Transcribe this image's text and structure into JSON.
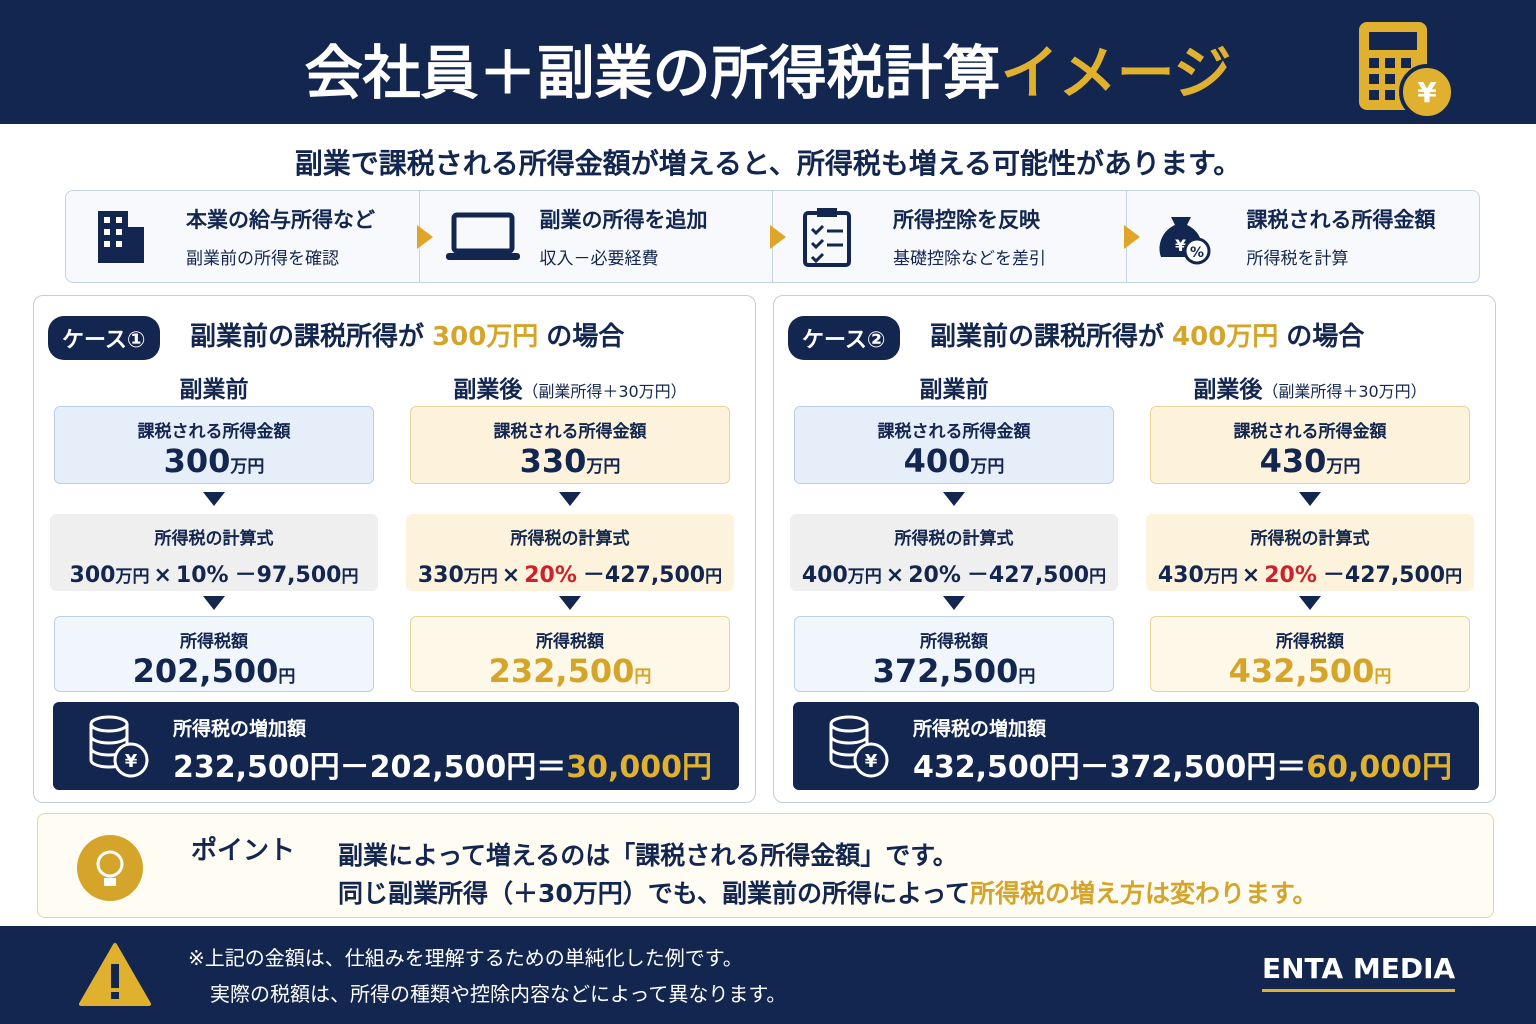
{
  "header": {
    "title_main": "会社員＋副業の所得税計算",
    "title_accent": "イメージ"
  },
  "intro": "副業で課税される所得金額が増えると、所得税も増える可能性があります。",
  "steps": [
    {
      "title": "本業の給与所得など",
      "sub": "副業前の所得を確認"
    },
    {
      "title": "副業の所得を追加",
      "sub": "収入－必要経費"
    },
    {
      "title": "所得控除を反映",
      "sub": "基礎控除などを差引"
    },
    {
      "title": "課税される所得金額",
      "sub": "所得税を計算"
    }
  ],
  "cases": [
    {
      "badge": "ケース①",
      "heading_prefix": "副業前の課税所得が",
      "heading_amount": "300万円",
      "heading_suffix": "の場合",
      "before_label": "副業前",
      "after_label": "副業後",
      "after_note": "（副業所得＋30万円）",
      "columns": [
        {
          "income_label": "課税される所得金額",
          "income_value": "300",
          "income_unit": "万円",
          "formula_label": "所得税の計算式",
          "formula_base": "300",
          "formula_base_unit": "万円",
          "formula_times": "×",
          "formula_rate": "10%",
          "formula_rest": "－97,500",
          "formula_rest_unit": "円",
          "tax_label": "所得税額",
          "tax_value": "202,500",
          "tax_unit": "円"
        },
        {
          "income_label": "課税される所得金額",
          "income_value": "330",
          "income_unit": "万円",
          "formula_label": "所得税の計算式",
          "formula_base": "330",
          "formula_base_unit": "万円",
          "formula_times": "×",
          "formula_rate": "20%",
          "formula_rest": "－427,500",
          "formula_rest_unit": "円",
          "tax_label": "所得税額",
          "tax_value": "232,500",
          "tax_unit": "円"
        }
      ],
      "increase_label": "所得税の増加額",
      "increase_expr": "232,500円－202,500円＝",
      "increase_result": "30,000円"
    },
    {
      "badge": "ケース②",
      "heading_prefix": "副業前の課税所得が",
      "heading_amount": "400万円",
      "heading_suffix": "の場合",
      "before_label": "副業前",
      "after_label": "副業後",
      "after_note": "（副業所得＋30万円）",
      "columns": [
        {
          "income_label": "課税される所得金額",
          "income_value": "400",
          "income_unit": "万円",
          "formula_label": "所得税の計算式",
          "formula_base": "400",
          "formula_base_unit": "万円",
          "formula_times": "×",
          "formula_rate": "20%",
          "formula_rest": "－427,500",
          "formula_rest_unit": "円",
          "tax_label": "所得税額",
          "tax_value": "372,500",
          "tax_unit": "円"
        },
        {
          "income_label": "課税される所得金額",
          "income_value": "430",
          "income_unit": "万円",
          "formula_label": "所得税の計算式",
          "formula_base": "430",
          "formula_base_unit": "万円",
          "formula_times": "×",
          "formula_rate": "20%",
          "formula_rest": "－427,500",
          "formula_rest_unit": "円",
          "tax_label": "所得税額",
          "tax_value": "432,500",
          "tax_unit": "円"
        }
      ],
      "increase_label": "所得税の増加額",
      "increase_expr": "432,500円－372,500円＝",
      "increase_result": "60,000円"
    }
  ],
  "point": {
    "label": "ポイント",
    "line1": "副業によって増えるのは「課税される所得金額」です。",
    "line2": "同じ副業所得（＋30万円）でも、副業前の所得によって",
    "line2_accent": "所得税の増え方は変わります。"
  },
  "footer": {
    "note1": "※上記の金額は、仕組みを理解するための単純化した例です。",
    "note2": "実際の税額は、所得の種類や控除内容などによって異なります。",
    "brand": "ENTA MEDIA"
  }
}
